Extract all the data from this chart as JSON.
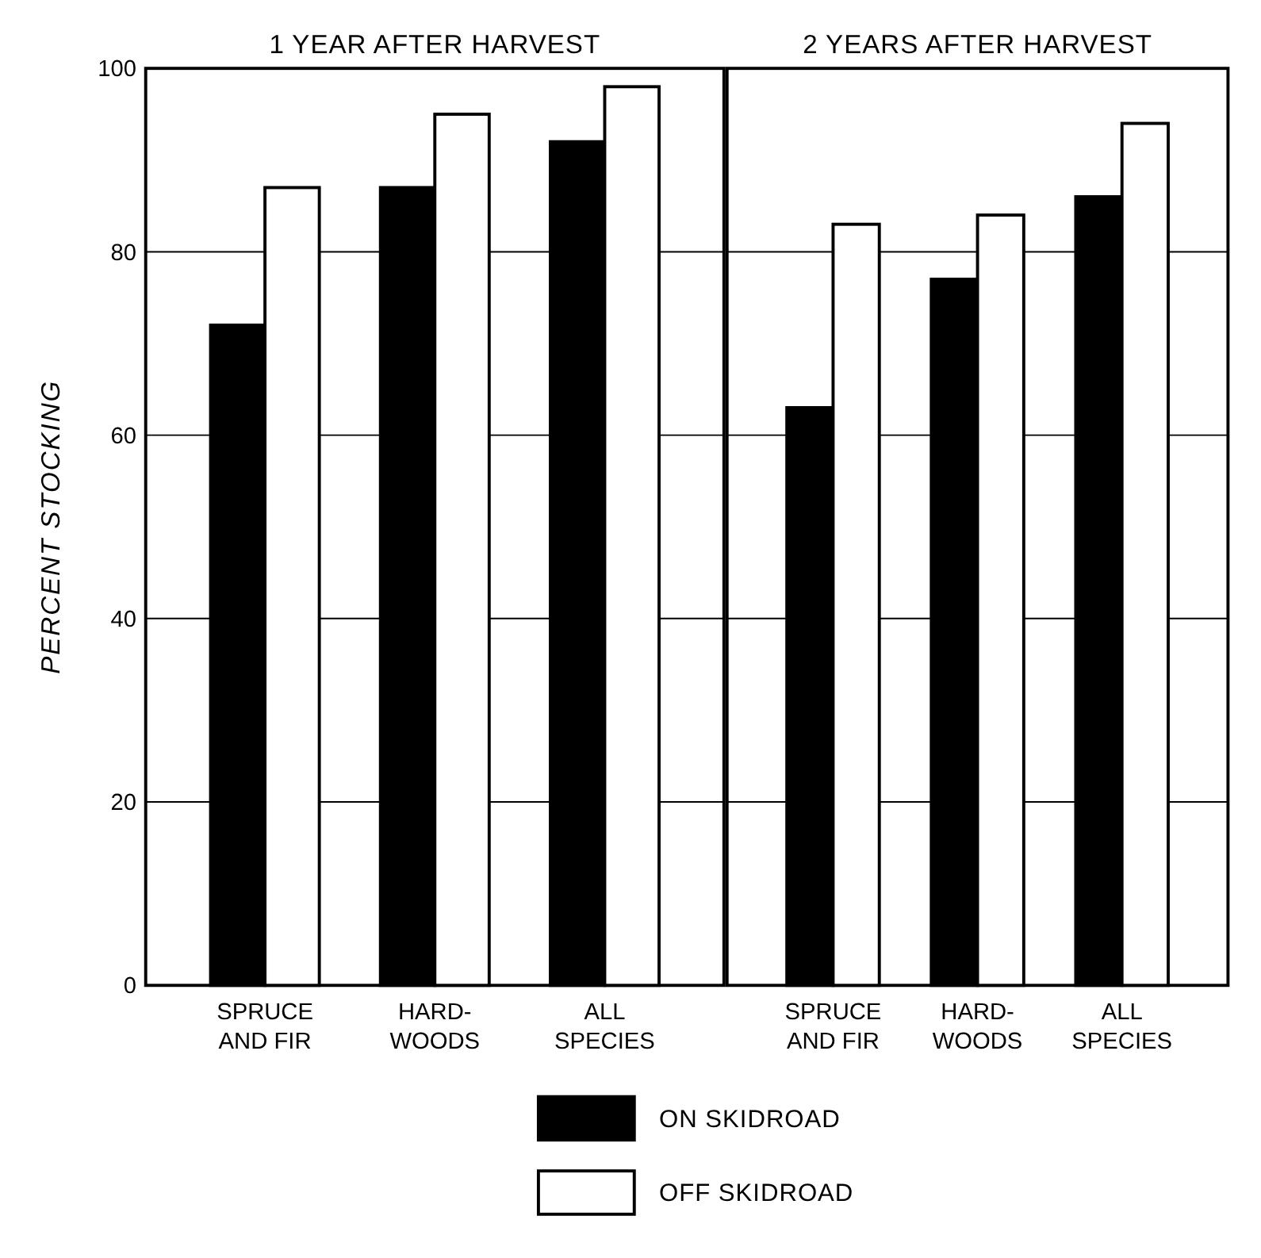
{
  "chart_data": [
    {
      "type": "bar",
      "title": "1 YEAR AFTER HARVEST",
      "ylabel": "PERCENT STOCKING",
      "categories": [
        "SPRUCE\nAND FIR",
        "HARD-\nWOODS",
        "ALL\nSPECIES"
      ],
      "series": [
        {
          "name": "ON SKIDROAD",
          "color": "#000000",
          "values": [
            72,
            87,
            92
          ]
        },
        {
          "name": "OFF SKIDROAD",
          "color": "#ffffff",
          "values": [
            87,
            95,
            98
          ]
        }
      ],
      "ylim": [
        0,
        100
      ],
      "yticks": [
        0,
        20,
        40,
        60,
        80,
        100
      ],
      "grid": "y",
      "legend": "bottom"
    },
    {
      "type": "bar",
      "title": "2 YEARS AFTER HARVEST",
      "categories": [
        "SPRUCE\nAND FIR",
        "HARD-\nWOODS",
        "ALL\nSPECIES"
      ],
      "series": [
        {
          "color": "#000000",
          "values": [
            63,
            77,
            86
          ]
        },
        {
          "color": "#ffffff",
          "values": [
            83,
            84,
            94
          ]
        }
      ],
      "ylim": [
        0,
        100
      ],
      "yticks": [
        0,
        20,
        40,
        60,
        80,
        100
      ],
      "grid": "y",
      "tick_labels": "x"
    }
  ]
}
